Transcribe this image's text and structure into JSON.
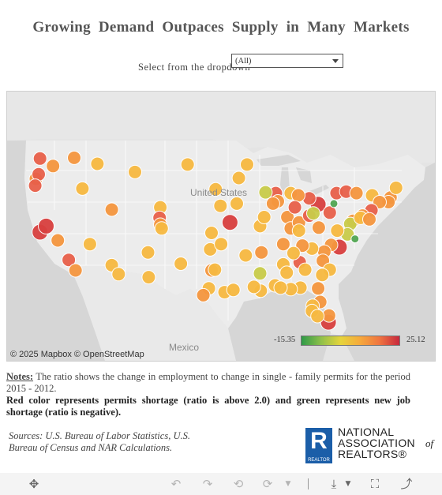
{
  "title": "Growing Demand Outpaces Supply in Many Markets",
  "filter": {
    "label": "Select from the dropdown",
    "selected": "(All)"
  },
  "map": {
    "attribution": "© 2025 Mapbox © OpenStreetMap",
    "labels": {
      "united_states": "United States",
      "mexico": "Mexico"
    },
    "legend": {
      "min": "-15.35",
      "max": "25.12",
      "min_color": "#2e9a48",
      "max_color": "#c7283e"
    },
    "colors": {
      "low": "#f7b941",
      "mid": "#f5963f",
      "high": "#e8604a",
      "very_high": "#d8403f",
      "neutral": "#c9cc4a",
      "green": "#52a653"
    },
    "markers": [
      {
        "lon": -122.4,
        "lat": 47.6,
        "c": "high"
      },
      {
        "lon": -120.5,
        "lat": 46.6,
        "c": "mid"
      },
      {
        "lon": -117.4,
        "lat": 47.7,
        "c": "mid"
      },
      {
        "lon": -123.0,
        "lat": 44.9,
        "c": "mid"
      },
      {
        "lon": -122.6,
        "lat": 45.5,
        "c": "high"
      },
      {
        "lon": -123.1,
        "lat": 44.0,
        "c": "high"
      },
      {
        "lon": -114.0,
        "lat": 46.9,
        "c": "low"
      },
      {
        "lon": -116.2,
        "lat": 43.6,
        "c": "low"
      },
      {
        "lon": -104.8,
        "lat": 41.1,
        "c": "low"
      },
      {
        "lon": -108.5,
        "lat": 45.8,
        "c": "low"
      },
      {
        "lon": -111.9,
        "lat": 40.8,
        "c": "mid"
      },
      {
        "lon": -104.9,
        "lat": 39.7,
        "c": "high"
      },
      {
        "lon": -104.8,
        "lat": 38.8,
        "c": "mid"
      },
      {
        "lon": -104.6,
        "lat": 38.3,
        "c": "low"
      },
      {
        "lon": -122.4,
        "lat": 37.8,
        "c": "very_high"
      },
      {
        "lon": -121.5,
        "lat": 38.6,
        "c": "very_high"
      },
      {
        "lon": -119.8,
        "lat": 36.7,
        "c": "mid"
      },
      {
        "lon": -118.2,
        "lat": 34.1,
        "c": "high"
      },
      {
        "lon": -117.2,
        "lat": 32.7,
        "c": "mid"
      },
      {
        "lon": -115.1,
        "lat": 36.2,
        "c": "low"
      },
      {
        "lon": -111.9,
        "lat": 33.4,
        "c": "low"
      },
      {
        "lon": -110.9,
        "lat": 32.2,
        "c": "low"
      },
      {
        "lon": -106.6,
        "lat": 35.1,
        "c": "low"
      },
      {
        "lon": -106.5,
        "lat": 31.8,
        "c": "low"
      },
      {
        "lon": -101.8,
        "lat": 33.6,
        "c": "low"
      },
      {
        "lon": -97.3,
        "lat": 32.7,
        "c": "mid"
      },
      {
        "lon": -96.8,
        "lat": 32.8,
        "c": "low"
      },
      {
        "lon": -97.7,
        "lat": 30.3,
        "c": "low"
      },
      {
        "lon": -98.5,
        "lat": 29.4,
        "c": "mid"
      },
      {
        "lon": -95.4,
        "lat": 29.8,
        "c": "low"
      },
      {
        "lon": -94.1,
        "lat": 30.1,
        "c": "low"
      },
      {
        "lon": -97.5,
        "lat": 35.5,
        "c": "low"
      },
      {
        "lon": -95.9,
        "lat": 36.2,
        "c": "low"
      },
      {
        "lon": -97.3,
        "lat": 37.7,
        "c": "low"
      },
      {
        "lon": -94.6,
        "lat": 39.1,
        "c": "very_high"
      },
      {
        "lon": -96.0,
        "lat": 41.3,
        "c": "low"
      },
      {
        "lon": -93.6,
        "lat": 41.6,
        "c": "low"
      },
      {
        "lon": -96.7,
        "lat": 43.5,
        "c": "low"
      },
      {
        "lon": -100.8,
        "lat": 46.8,
        "c": "low"
      },
      {
        "lon": -93.3,
        "lat": 45.0,
        "c": "low"
      },
      {
        "lon": -92.1,
        "lat": 46.8,
        "c": "low"
      },
      {
        "lon": -90.2,
        "lat": 38.6,
        "c": "low"
      },
      {
        "lon": -92.3,
        "lat": 34.7,
        "c": "low"
      },
      {
        "lon": -90.1,
        "lat": 30.0,
        "c": "low"
      },
      {
        "lon": -91.1,
        "lat": 30.5,
        "c": "low"
      },
      {
        "lon": -88.0,
        "lat": 30.7,
        "c": "low"
      },
      {
        "lon": -90.2,
        "lat": 32.3,
        "c": "neutral"
      },
      {
        "lon": -87.9,
        "lat": 43.0,
        "c": "high"
      },
      {
        "lon": -89.4,
        "lat": 43.1,
        "c": "neutral"
      },
      {
        "lon": -87.6,
        "lat": 41.9,
        "c": "mid"
      },
      {
        "lon": -86.2,
        "lat": 39.8,
        "c": "mid"
      },
      {
        "lon": -85.7,
        "lat": 38.3,
        "c": "mid"
      },
      {
        "lon": -84.5,
        "lat": 39.1,
        "c": "mid"
      },
      {
        "lon": -83.0,
        "lat": 40.0,
        "c": "high"
      },
      {
        "lon": -81.7,
        "lat": 41.5,
        "c": "very_high"
      },
      {
        "lon": -83.0,
        "lat": 42.3,
        "c": "high"
      },
      {
        "lon": -85.7,
        "lat": 43.0,
        "c": "low"
      },
      {
        "lon": -84.6,
        "lat": 42.7,
        "c": "mid"
      },
      {
        "lon": -80.0,
        "lat": 40.4,
        "c": "high"
      },
      {
        "lon": -79.0,
        "lat": 43.0,
        "c": "high"
      },
      {
        "lon": -77.6,
        "lat": 43.2,
        "c": "high"
      },
      {
        "lon": -76.1,
        "lat": 43.0,
        "c": "mid"
      },
      {
        "lon": -73.8,
        "lat": 42.7,
        "c": "low"
      },
      {
        "lon": -71.1,
        "lat": 42.4,
        "c": "mid"
      },
      {
        "lon": -71.4,
        "lat": 41.8,
        "c": "mid"
      },
      {
        "lon": -72.7,
        "lat": 41.8,
        "c": "mid"
      },
      {
        "lon": -73.9,
        "lat": 40.7,
        "c": "high"
      },
      {
        "lon": -75.2,
        "lat": 40.0,
        "c": "mid"
      },
      {
        "lon": -76.6,
        "lat": 39.3,
        "c": "mid"
      },
      {
        "lon": -77.0,
        "lat": 38.9,
        "c": "neutral"
      },
      {
        "lon": -75.5,
        "lat": 39.7,
        "c": "low"
      },
      {
        "lon": -74.2,
        "lat": 39.5,
        "c": "mid"
      },
      {
        "lon": -70.3,
        "lat": 43.7,
        "c": "low"
      },
      {
        "lon": -77.4,
        "lat": 37.5,
        "c": "neutral"
      },
      {
        "lon": -76.3,
        "lat": 36.9,
        "c": "green"
      },
      {
        "lon": -78.6,
        "lat": 35.8,
        "c": "very_high"
      },
      {
        "lon": -79.8,
        "lat": 36.1,
        "c": "mid"
      },
      {
        "lon": -80.8,
        "lat": 35.2,
        "c": "mid"
      },
      {
        "lon": -82.6,
        "lat": 35.6,
        "c": "low"
      },
      {
        "lon": -81.0,
        "lat": 34.0,
        "c": "mid"
      },
      {
        "lon": -80.0,
        "lat": 32.8,
        "c": "low"
      },
      {
        "lon": -84.4,
        "lat": 33.8,
        "c": "high"
      },
      {
        "lon": -83.6,
        "lat": 32.8,
        "c": "low"
      },
      {
        "lon": -81.1,
        "lat": 32.1,
        "c": "low"
      },
      {
        "lon": -86.8,
        "lat": 33.5,
        "c": "low"
      },
      {
        "lon": -86.3,
        "lat": 32.4,
        "c": "low"
      },
      {
        "lon": -86.8,
        "lat": 36.2,
        "c": "mid"
      },
      {
        "lon": -84.0,
        "lat": 36.0,
        "c": "mid"
      },
      {
        "lon": -85.3,
        "lat": 35.0,
        "c": "low"
      },
      {
        "lon": -90.0,
        "lat": 35.1,
        "c": "mid"
      },
      {
        "lon": -81.7,
        "lat": 30.3,
        "c": "mid"
      },
      {
        "lon": -81.4,
        "lat": 28.5,
        "c": "mid"
      },
      {
        "lon": -82.5,
        "lat": 28.0,
        "c": "low"
      },
      {
        "lon": -82.6,
        "lat": 27.3,
        "c": "low"
      },
      {
        "lon": -80.2,
        "lat": 25.8,
        "c": "very_high"
      },
      {
        "lon": -80.1,
        "lat": 26.7,
        "c": "mid"
      },
      {
        "lon": -81.8,
        "lat": 26.6,
        "c": "low"
      },
      {
        "lon": -84.3,
        "lat": 30.4,
        "c": "low"
      },
      {
        "lon": -85.7,
        "lat": 30.2,
        "c": "low"
      },
      {
        "lon": -87.2,
        "lat": 30.4,
        "c": "low"
      },
      {
        "lon": -82.4,
        "lat": 40.3,
        "c": "neutral"
      },
      {
        "lon": -79.4,
        "lat": 41.6,
        "c": "green"
      },
      {
        "lon": -81.6,
        "lat": 38.4,
        "c": "mid"
      },
      {
        "lon": -78.9,
        "lat": 38.0,
        "c": "low"
      },
      {
        "lon": -84.5,
        "lat": 38.0,
        "c": "low"
      },
      {
        "lon": -88.3,
        "lat": 41.6,
        "c": "mid"
      },
      {
        "lon": -89.6,
        "lat": 39.8,
        "c": "low"
      },
      {
        "lon": -85.1,
        "lat": 41.1,
        "c": "high"
      }
    ]
  },
  "notes": {
    "header": "Notes:",
    "line1": "The ratio shows the change in employment  to change in single - family permits for the period 2015 - 2012.",
    "line2": "Red color represents permits shortage (ratio is above 2.0) and green represents new job shortage (ratio is negative)."
  },
  "sources": "Sources: U.S. Bureau of Labor Statistics, U.S. Bureau of Census and NAR Calculations.",
  "logo": {
    "r_letter": "R",
    "r_sub": "REALTOR",
    "line1": "NATIONAL",
    "line2": "ASSOCIATION",
    "line3": "REALTORS®",
    "of": "of"
  },
  "toolbar": {
    "move_icon": "move-icon",
    "undo_icon": "undo-icon",
    "redo_icon": "redo-icon",
    "revert_icon": "revert-icon",
    "refresh_icon": "refresh-icon",
    "download_icon": "download-icon",
    "fullscreen_icon": "fullscreen-icon",
    "share_icon": "share-icon"
  }
}
